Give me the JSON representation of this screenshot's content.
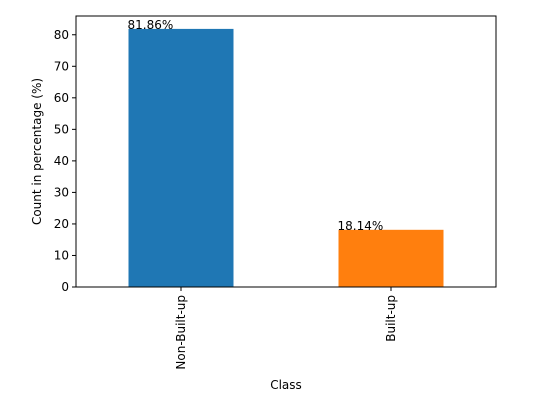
{
  "chart_data": {
    "type": "bar",
    "categories": [
      "Non-Built-up",
      "Built-up"
    ],
    "values": [
      81.86,
      18.14
    ],
    "data_labels": [
      "81.86%",
      "18.14%"
    ],
    "colors": [
      "#1f77b4",
      "#ff7f0e"
    ],
    "title": "",
    "xlabel": "Class",
    "ylabel": "Count in percentage (%)",
    "ylim": [
      0,
      85.95
    ],
    "yticks": [
      0,
      10,
      20,
      30,
      40,
      50,
      60,
      70,
      80
    ],
    "ytick_labels": [
      "0",
      "10",
      "20",
      "30",
      "40",
      "50",
      "60",
      "70",
      "80"
    ],
    "grid": false,
    "legend": "none"
  }
}
